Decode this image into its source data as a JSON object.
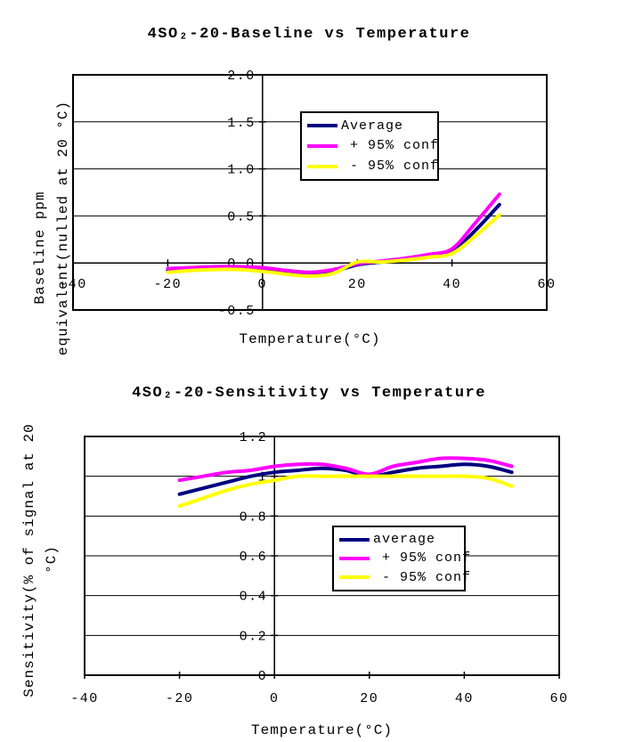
{
  "page": {
    "background_color": "#ffffff",
    "text_color": "#000000"
  },
  "chart_data": [
    {
      "type": "line",
      "title": "4SO₂-20-Baseline vs Temperature",
      "xlabel": "Temperature(°C)",
      "ylabel": "Baseline ppm equivalent(nulled at 20 °C)",
      "ylabel_lines": [
        "Baseline ppm",
        "equivalent(nulled at 20 °C)"
      ],
      "xlim": [
        -40,
        60
      ],
      "ylim": [
        -0.5,
        2.0
      ],
      "x_ticks": [
        -40,
        -20,
        0,
        20,
        40,
        60
      ],
      "x_tick_labels": [
        "-40",
        "-20",
        "0",
        "20",
        "40",
        "60"
      ],
      "y_ticks": [
        2.0,
        1.5,
        1.0,
        0.5,
        0.0,
        -0.5
      ],
      "y_tick_labels": [
        "2.0",
        "1.5",
        "1.0",
        "0.5",
        "0.0",
        "-0.5"
      ],
      "grid": "horizontal",
      "smoothed_lines": true,
      "legend_position": "upper-middle",
      "x": [
        -20,
        -15,
        -10,
        -5,
        0,
        5,
        10,
        15,
        20,
        25,
        30,
        35,
        40,
        45,
        50
      ],
      "series": [
        {
          "name": "Average",
          "color": "#000080",
          "values": [
            -0.08,
            -0.07,
            -0.06,
            -0.06,
            -0.07,
            -0.1,
            -0.12,
            -0.09,
            -0.02,
            0.01,
            0.04,
            0.08,
            0.12,
            0.35,
            0.62
          ]
        },
        {
          "name": " + 95% conf",
          "color": "#FF00FF",
          "values": [
            -0.06,
            -0.05,
            -0.04,
            -0.04,
            -0.05,
            -0.08,
            -0.1,
            -0.07,
            -0.01,
            0.02,
            0.05,
            0.09,
            0.15,
            0.43,
            0.73
          ]
        },
        {
          "name": " - 95% conf",
          "color": "#FFFF00",
          "values": [
            -0.1,
            -0.08,
            -0.07,
            -0.07,
            -0.09,
            -0.12,
            -0.14,
            -0.11,
            0.01,
            0.01,
            0.03,
            0.06,
            0.1,
            0.29,
            0.51
          ]
        }
      ]
    },
    {
      "type": "line",
      "title": "4SO₂-20-Sensitivity vs Temperature",
      "xlabel": "Temperature(°C)",
      "ylabel": "Sensitivity(% of signal at 20 °C)",
      "ylabel_lines": [
        "Sensitivity(% of signal at 20",
        "°C)"
      ],
      "xlim": [
        -40,
        60
      ],
      "ylim": [
        0,
        1.2
      ],
      "x_ticks": [
        -40,
        -20,
        0,
        20,
        40,
        60
      ],
      "x_tick_labels": [
        "-40",
        "-20",
        "0",
        "20",
        "40",
        "60"
      ],
      "y_ticks": [
        1.2,
        1.0,
        0.8,
        0.6,
        0.4,
        0.2,
        0
      ],
      "y_tick_labels": [
        "1.2",
        "1",
        "0.8",
        "0.6",
        "0.4",
        "0.2",
        "0"
      ],
      "grid": "horizontal",
      "smoothed_lines": true,
      "legend_position": "middle-right",
      "x": [
        -20,
        -15,
        -10,
        -5,
        0,
        5,
        10,
        15,
        20,
        25,
        30,
        35,
        40,
        45,
        50
      ],
      "series": [
        {
          "name": "average",
          "color": "#000080",
          "values": [
            0.91,
            0.94,
            0.97,
            1.0,
            1.02,
            1.03,
            1.04,
            1.03,
            1.0,
            1.02,
            1.04,
            1.05,
            1.06,
            1.05,
            1.02
          ]
        },
        {
          "name": " + 95% conf",
          "color": "#FF00FF",
          "values": [
            0.98,
            1.0,
            1.02,
            1.03,
            1.05,
            1.06,
            1.06,
            1.04,
            1.01,
            1.05,
            1.07,
            1.09,
            1.09,
            1.08,
            1.05
          ]
        },
        {
          "name": " - 95% conf",
          "color": "#FFFF00",
          "values": [
            0.85,
            0.89,
            0.93,
            0.96,
            0.98,
            1.0,
            1.0,
            1.0,
            1.0,
            1.0,
            1.0,
            1.0,
            1.0,
            0.99,
            0.95
          ]
        }
      ]
    }
  ]
}
